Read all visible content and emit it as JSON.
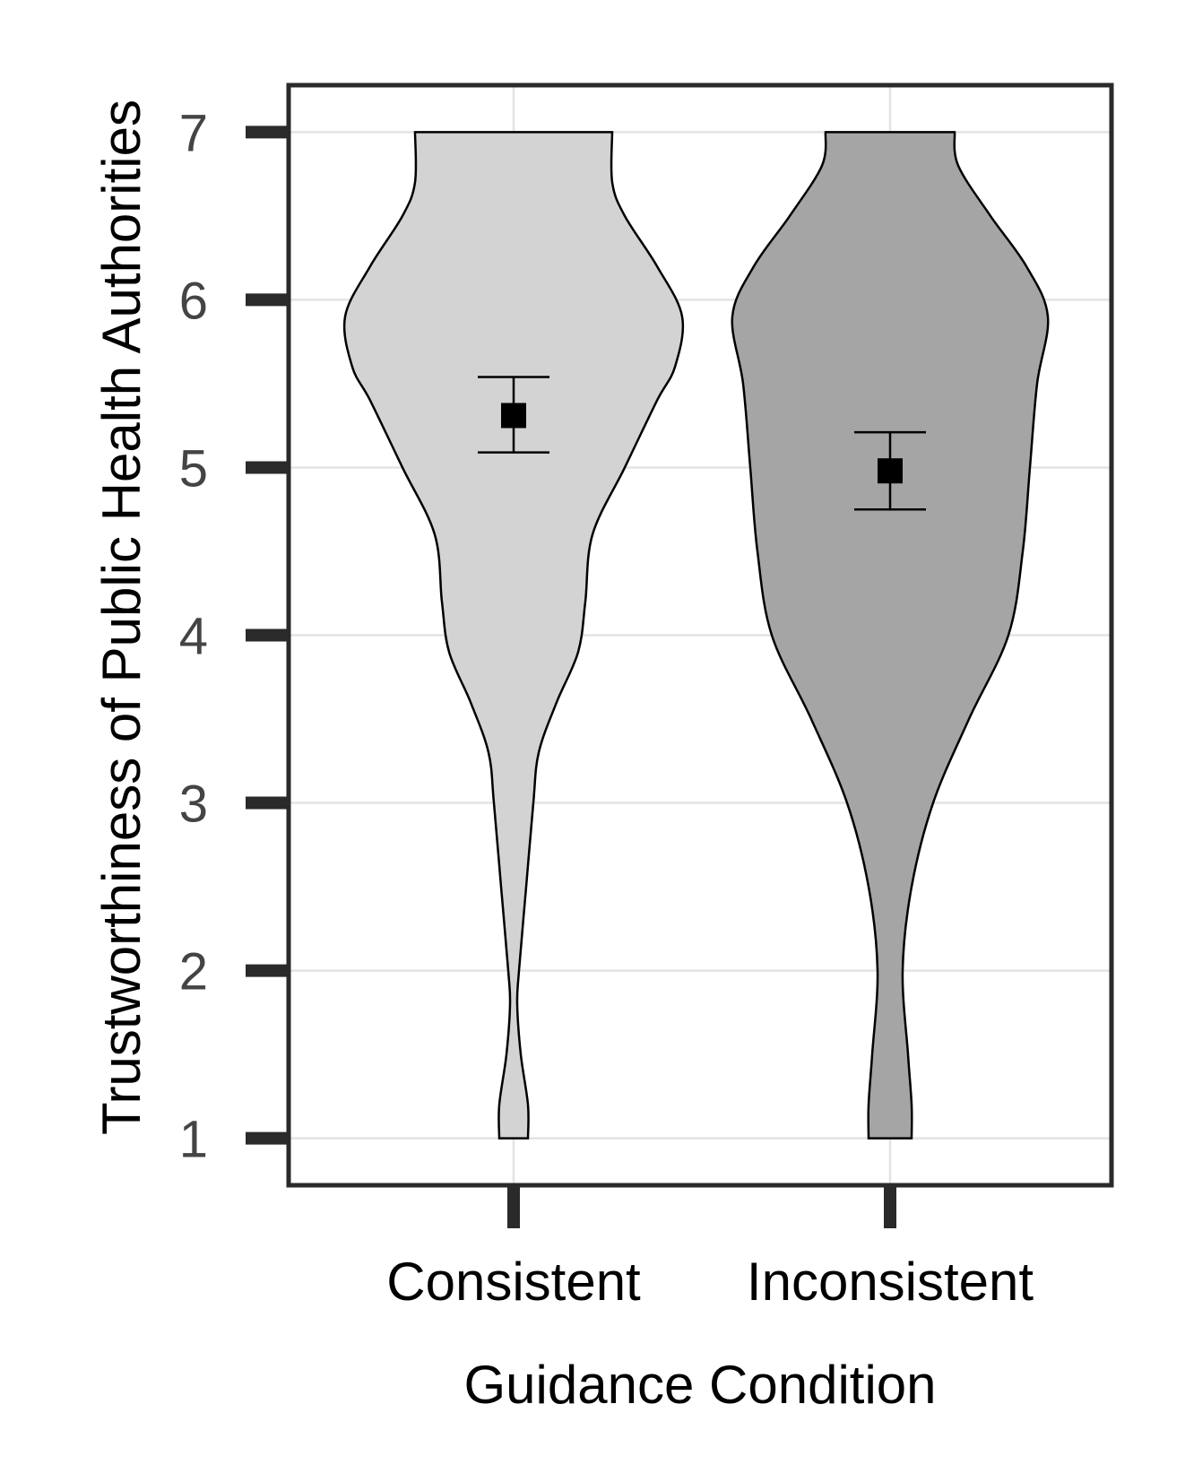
{
  "chart_data": {
    "type": "violin",
    "xlabel": "Guidance Condition",
    "ylabel": "Trustworthiness of Public Health Authorities",
    "categories": [
      "Consistent",
      "Inconsistent"
    ],
    "ylim": [
      0.72,
      7.28
    ],
    "yticks": [
      1,
      2,
      3,
      4,
      5,
      6,
      7
    ],
    "grid": true,
    "series": [
      {
        "category": "Consistent",
        "fill": "#d3d3d3",
        "mean": 5.31,
        "ci_low": 5.09,
        "ci_high": 5.54,
        "density_profile": [
          [
            1.0,
            0.08
          ],
          [
            1.2,
            0.08
          ],
          [
            1.5,
            0.04
          ],
          [
            1.8,
            0.02
          ],
          [
            2.0,
            0.03
          ],
          [
            2.5,
            0.07
          ],
          [
            3.0,
            0.11
          ],
          [
            3.3,
            0.14
          ],
          [
            3.6,
            0.24
          ],
          [
            3.9,
            0.36
          ],
          [
            4.2,
            0.4
          ],
          [
            4.6,
            0.44
          ],
          [
            5.0,
            0.62
          ],
          [
            5.4,
            0.8
          ],
          [
            5.6,
            0.9
          ],
          [
            5.9,
            0.94
          ],
          [
            6.2,
            0.8
          ],
          [
            6.5,
            0.62
          ],
          [
            6.7,
            0.55
          ],
          [
            7.0,
            0.55
          ]
        ]
      },
      {
        "category": "Inconsistent",
        "fill": "#a5a5a5",
        "mean": 4.98,
        "ci_low": 4.75,
        "ci_high": 5.21,
        "density_profile": [
          [
            1.0,
            0.12
          ],
          [
            1.2,
            0.12
          ],
          [
            1.5,
            0.1
          ],
          [
            2.0,
            0.07
          ],
          [
            2.5,
            0.12
          ],
          [
            3.0,
            0.24
          ],
          [
            3.5,
            0.44
          ],
          [
            4.0,
            0.66
          ],
          [
            4.5,
            0.74
          ],
          [
            5.0,
            0.78
          ],
          [
            5.5,
            0.82
          ],
          [
            5.9,
            0.88
          ],
          [
            6.2,
            0.76
          ],
          [
            6.5,
            0.56
          ],
          [
            6.8,
            0.38
          ],
          [
            7.0,
            0.36
          ]
        ]
      }
    ]
  }
}
